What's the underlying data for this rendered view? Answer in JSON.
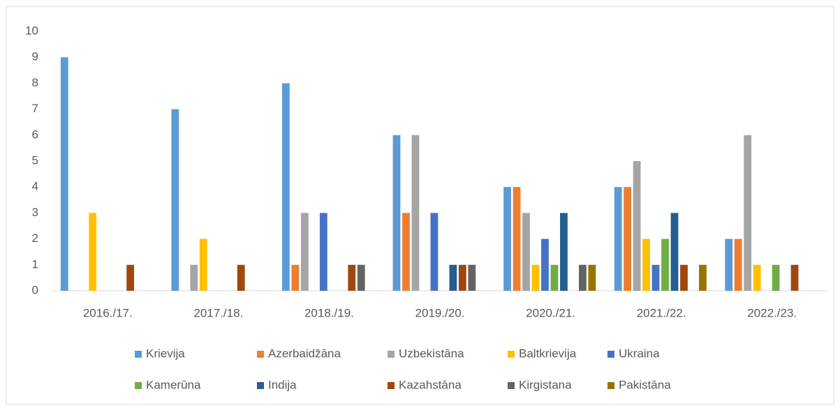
{
  "chart_data": {
    "type": "bar",
    "categories": [
      "2016./17.",
      "2017./18.",
      "2018./19.",
      "2019./20.",
      "2020./21.",
      "2021./22.",
      "2022./23."
    ],
    "series": [
      {
        "name": "Krievija",
        "color": "#5b9bd5",
        "values": [
          9,
          7,
          8,
          6,
          4,
          4,
          2
        ]
      },
      {
        "name": "Azerbaidžāna",
        "color": "#ed7d31",
        "values": [
          0,
          0,
          1,
          3,
          4,
          4,
          2
        ]
      },
      {
        "name": "Uzbekistāna",
        "color": "#a5a5a5",
        "values": [
          0,
          1,
          3,
          6,
          3,
          5,
          6
        ]
      },
      {
        "name": "Baltkrievija",
        "color": "#ffc000",
        "values": [
          3,
          2,
          0,
          0,
          1,
          2,
          1
        ]
      },
      {
        "name": "Ukraina",
        "color": "#4472c4",
        "values": [
          0,
          0,
          3,
          3,
          2,
          1,
          0
        ]
      },
      {
        "name": "Kamerūna",
        "color": "#70ad47",
        "values": [
          0,
          0,
          0,
          0,
          1,
          2,
          1
        ]
      },
      {
        "name": "Indija",
        "color": "#255e91",
        "values": [
          0,
          0,
          0,
          1,
          3,
          3,
          0
        ]
      },
      {
        "name": "Kazahstāna",
        "color": "#9e480e",
        "values": [
          1,
          1,
          1,
          1,
          0,
          1,
          1
        ]
      },
      {
        "name": "Kirgistana",
        "color": "#636363",
        "values": [
          0,
          0,
          1,
          1,
          1,
          0,
          0
        ]
      },
      {
        "name": "Pakistāna",
        "color": "#997300",
        "values": [
          0,
          0,
          0,
          0,
          1,
          1,
          0
        ]
      }
    ],
    "ylim": [
      0,
      10
    ],
    "yticks": [
      0,
      1,
      2,
      3,
      4,
      5,
      6,
      7,
      8,
      9,
      10
    ],
    "grid": false,
    "legend": "bottom"
  }
}
